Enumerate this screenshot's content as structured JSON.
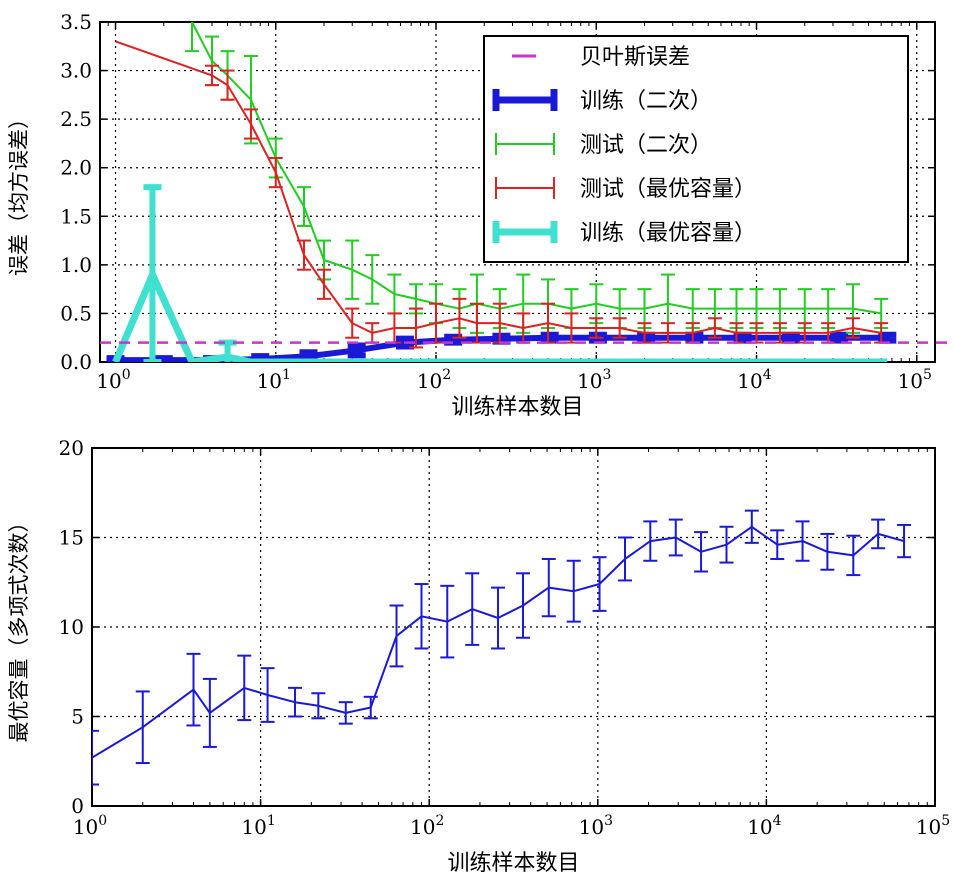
{
  "chart_data": [
    {
      "type": "line",
      "x_scale": "log",
      "xlim": [
        0.8,
        130000
      ],
      "ylim": [
        0,
        3.5
      ],
      "xlabel": "训练样本数目",
      "ylabel": "误差（均方误差）",
      "x_ticks": [
        1,
        10,
        100,
        1000,
        10000,
        100000
      ],
      "x_tick_labels": [
        "10",
        "10",
        "10",
        "10",
        "10",
        "10"
      ],
      "x_tick_exponents": [
        "0",
        "1",
        "2",
        "3",
        "4",
        "5"
      ],
      "y_ticks": [
        0.0,
        0.5,
        1.0,
        1.5,
        2.0,
        2.5,
        3.0,
        3.5
      ],
      "y_tick_labels": [
        "0.0",
        "0.5",
        "1.0",
        "1.5",
        "2.0",
        "2.5",
        "3.0",
        "3.5"
      ],
      "grid": true,
      "legend_position": "top-right",
      "bayes_error": {
        "name": "贝叶斯误差",
        "value": 0.2,
        "color": "#cc33cc"
      },
      "series": [
        {
          "name": "训练（二次）",
          "color": "#1a1ad6",
          "style": "thick",
          "x": [
            1,
            2,
            4,
            8,
            16,
            32,
            64,
            128,
            256,
            512,
            1024,
            2048,
            4096,
            8192,
            16384,
            32768,
            65536
          ],
          "y": [
            0.02,
            0.02,
            0.02,
            0.03,
            0.06,
            0.12,
            0.2,
            0.23,
            0.24,
            0.25,
            0.25,
            0.25,
            0.25,
            0.25,
            0.25,
            0.25,
            0.25
          ],
          "err": [
            0.02,
            0.02,
            0.02,
            0.03,
            0.04,
            0.05,
            0.04,
            0.03,
            0.03,
            0.03,
            0.03,
            0.03,
            0.03,
            0.03,
            0.03,
            0.03,
            0.03
          ]
        },
        {
          "name": "测试（二次）",
          "color": "#22cc22",
          "style": "thin",
          "x": [
            3,
            4,
            5,
            7,
            10,
            15,
            20,
            30,
            40,
            55,
            75,
            100,
            140,
            180,
            250,
            350,
            500,
            700,
            1000,
            1400,
            2000,
            2800,
            4000,
            5500,
            7500,
            10000,
            14000,
            20000,
            28000,
            40000,
            60000
          ],
          "y": [
            3.5,
            3.1,
            2.95,
            2.7,
            2.1,
            1.6,
            1.05,
            0.95,
            0.85,
            0.7,
            0.65,
            0.6,
            0.55,
            0.6,
            0.55,
            0.6,
            0.6,
            0.55,
            0.6,
            0.55,
            0.55,
            0.6,
            0.55,
            0.55,
            0.55,
            0.55,
            0.55,
            0.55,
            0.55,
            0.55,
            0.5
          ],
          "err": [
            0.3,
            0.25,
            0.25,
            0.45,
            0.2,
            0.2,
            0.2,
            0.3,
            0.25,
            0.2,
            0.15,
            0.2,
            0.2,
            0.3,
            0.2,
            0.3,
            0.25,
            0.2,
            0.2,
            0.2,
            0.2,
            0.3,
            0.2,
            0.2,
            0.2,
            0.2,
            0.2,
            0.2,
            0.2,
            0.25,
            0.15
          ]
        },
        {
          "name": "测试（最优容量）",
          "color": "#dd2222",
          "style": "thin",
          "x": [
            1,
            4,
            5,
            7,
            10,
            15,
            20,
            30,
            40,
            55,
            75,
            100,
            140,
            180,
            250,
            350,
            500,
            700,
            1000,
            1400,
            2000,
            2800,
            4000,
            5500,
            7500,
            10000,
            14000,
            20000,
            28000,
            40000,
            60000
          ],
          "y": [
            3.3,
            2.95,
            2.85,
            2.45,
            1.95,
            1.1,
            0.8,
            0.4,
            0.3,
            0.35,
            0.35,
            0.4,
            0.45,
            0.4,
            0.4,
            0.35,
            0.4,
            0.35,
            0.35,
            0.35,
            0.3,
            0.3,
            0.3,
            0.35,
            0.3,
            0.3,
            0.3,
            0.3,
            0.3,
            0.35,
            0.3
          ],
          "err": [
            0.0,
            0.1,
            0.15,
            0.15,
            0.15,
            0.15,
            0.15,
            0.15,
            0.1,
            0.15,
            0.2,
            0.2,
            0.2,
            0.2,
            0.2,
            0.15,
            0.2,
            0.15,
            0.1,
            0.1,
            0.1,
            0.1,
            0.1,
            0.1,
            0.1,
            0.1,
            0.1,
            0.1,
            0.1,
            0.1,
            0.1
          ]
        },
        {
          "name": "训练（最优容量）",
          "color": "#40e0d0",
          "style": "thick",
          "x": [
            1,
            1.7,
            3,
            5,
            7,
            10,
            100,
            1000,
            10000,
            65536
          ],
          "y": [
            0.0,
            0.9,
            0.0,
            0.05,
            0.0,
            0.0,
            0.0,
            0.0,
            0.0,
            0.0
          ],
          "err": [
            0.0,
            0.9,
            0.0,
            0.15,
            0.0,
            0.0,
            0.0,
            0.0,
            0.0,
            0.0
          ]
        }
      ]
    },
    {
      "type": "line",
      "x_scale": "log",
      "xlim": [
        1,
        100000
      ],
      "ylim": [
        0,
        20
      ],
      "xlabel": "训练样本数目",
      "ylabel": "最优容量（多项式次数）",
      "x_ticks": [
        1,
        10,
        100,
        1000,
        10000,
        100000
      ],
      "x_tick_labels": [
        "10",
        "10",
        "10",
        "10",
        "10",
        "10"
      ],
      "x_tick_exponents": [
        "0",
        "1",
        "2",
        "3",
        "4",
        "5"
      ],
      "y_ticks": [
        0,
        5,
        10,
        15,
        20
      ],
      "y_tick_labels": [
        "0",
        "5",
        "10",
        "15",
        "20"
      ],
      "grid": true,
      "series": [
        {
          "color": "#1a1ad6",
          "x": [
            1,
            2,
            4,
            5,
            8,
            11,
            16,
            22,
            32,
            45,
            64,
            90,
            128,
            180,
            256,
            360,
            512,
            720,
            1024,
            1450,
            2048,
            2900,
            4096,
            5800,
            8192,
            11600,
            16384,
            23000,
            32768,
            46000,
            65536
          ],
          "y": [
            2.7,
            4.4,
            6.5,
            5.2,
            6.6,
            6.2,
            5.8,
            5.6,
            5.2,
            5.5,
            9.5,
            10.6,
            10.3,
            11.0,
            10.5,
            11.2,
            12.2,
            12.0,
            12.4,
            13.8,
            14.8,
            15.0,
            14.2,
            14.6,
            15.6,
            14.6,
            14.8,
            14.2,
            14.0,
            15.2,
            14.8
          ],
          "err": [
            1.5,
            2.0,
            2.0,
            1.9,
            1.8,
            1.5,
            0.8,
            0.7,
            0.6,
            0.6,
            1.7,
            1.8,
            2.0,
            2.0,
            1.7,
            1.8,
            1.6,
            1.7,
            1.5,
            1.2,
            1.1,
            1.0,
            1.1,
            1.0,
            0.9,
            0.8,
            1.1,
            1.0,
            1.1,
            0.8,
            0.9
          ]
        }
      ]
    }
  ]
}
